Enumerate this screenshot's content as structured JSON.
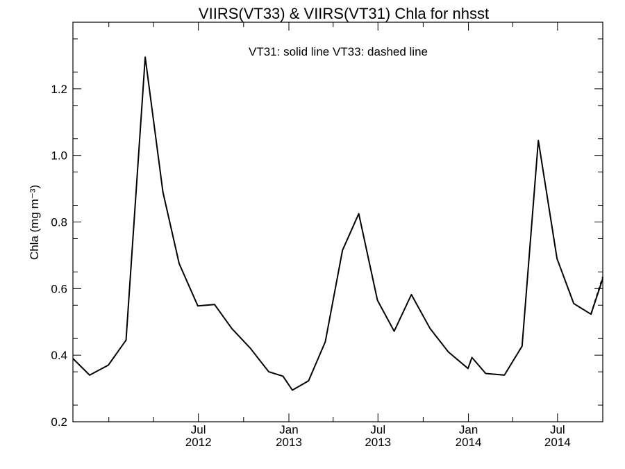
{
  "chart_data": {
    "type": "line",
    "title": "VIIRS(VT33) & VIIRS(VT31)  Chla for nhsst",
    "annotation": "VT31: solid line   VT33: dashed line",
    "ylabel": "Chla (mg m⁻³)",
    "xlabel": "",
    "ylim": [
      0.2,
      1.4
    ],
    "xlim": [
      "2011-10-20",
      "2014-10-01"
    ],
    "grid": false,
    "y_ticks": [
      "0.2",
      "0.4",
      "0.6",
      "0.8",
      "1.0",
      "1.2"
    ],
    "y_tick_values": [
      0.2,
      0.4,
      0.6,
      0.8,
      1.0,
      1.2
    ],
    "x_ticks": [
      {
        "date": "2012-07-01",
        "month": "Jul",
        "year": "2012"
      },
      {
        "date": "2013-01-01",
        "month": "Jan",
        "year": "2013"
      },
      {
        "date": "2013-07-01",
        "month": "Jul",
        "year": "2013"
      },
      {
        "date": "2014-01-01",
        "month": "Jan",
        "year": "2014"
      },
      {
        "date": "2014-07-01",
        "month": "Jul",
        "year": "2014"
      }
    ],
    "x_minor_ticks": [
      "2012-01-01",
      "2012-04-01",
      "2012-10-01",
      "2013-04-01",
      "2013-10-01",
      "2014-04-01"
    ],
    "series": [
      {
        "name": "VT31",
        "style": "solid",
        "color": "#000000",
        "x": [
          "2011-10-20",
          "2011-11-23",
          "2011-12-31",
          "2012-02-05",
          "2012-03-15",
          "2012-04-20",
          "2012-05-23",
          "2012-06-30",
          "2012-08-03",
          "2012-09-07",
          "2012-10-15",
          "2012-11-21",
          "2012-12-20",
          "2013-01-08",
          "2013-02-10",
          "2013-03-16",
          "2013-04-20",
          "2013-05-23",
          "2013-06-30",
          "2013-08-03",
          "2013-09-07",
          "2013-10-15",
          "2013-11-21",
          "2013-12-31",
          "2014-01-08",
          "2014-02-05",
          "2014-03-15",
          "2014-04-20",
          "2014-05-23",
          "2014-06-30",
          "2014-08-03",
          "2014-09-07",
          "2014-10-01"
        ],
        "y": [
          0.39,
          0.34,
          0.37,
          0.445,
          1.295,
          0.89,
          0.675,
          0.548,
          0.552,
          0.48,
          0.42,
          0.35,
          0.337,
          0.295,
          0.323,
          0.44,
          0.715,
          0.825,
          0.565,
          0.472,
          0.582,
          0.48,
          0.41,
          0.36,
          0.393,
          0.345,
          0.34,
          0.427,
          1.045,
          0.69,
          0.555,
          0.523,
          0.63
        ]
      },
      {
        "name": "VT33",
        "style": "dashed",
        "color": "#000000",
        "x": [
          "2014-09-07",
          "2014-10-01"
        ],
        "y": [
          0.523,
          0.635
        ]
      }
    ]
  }
}
